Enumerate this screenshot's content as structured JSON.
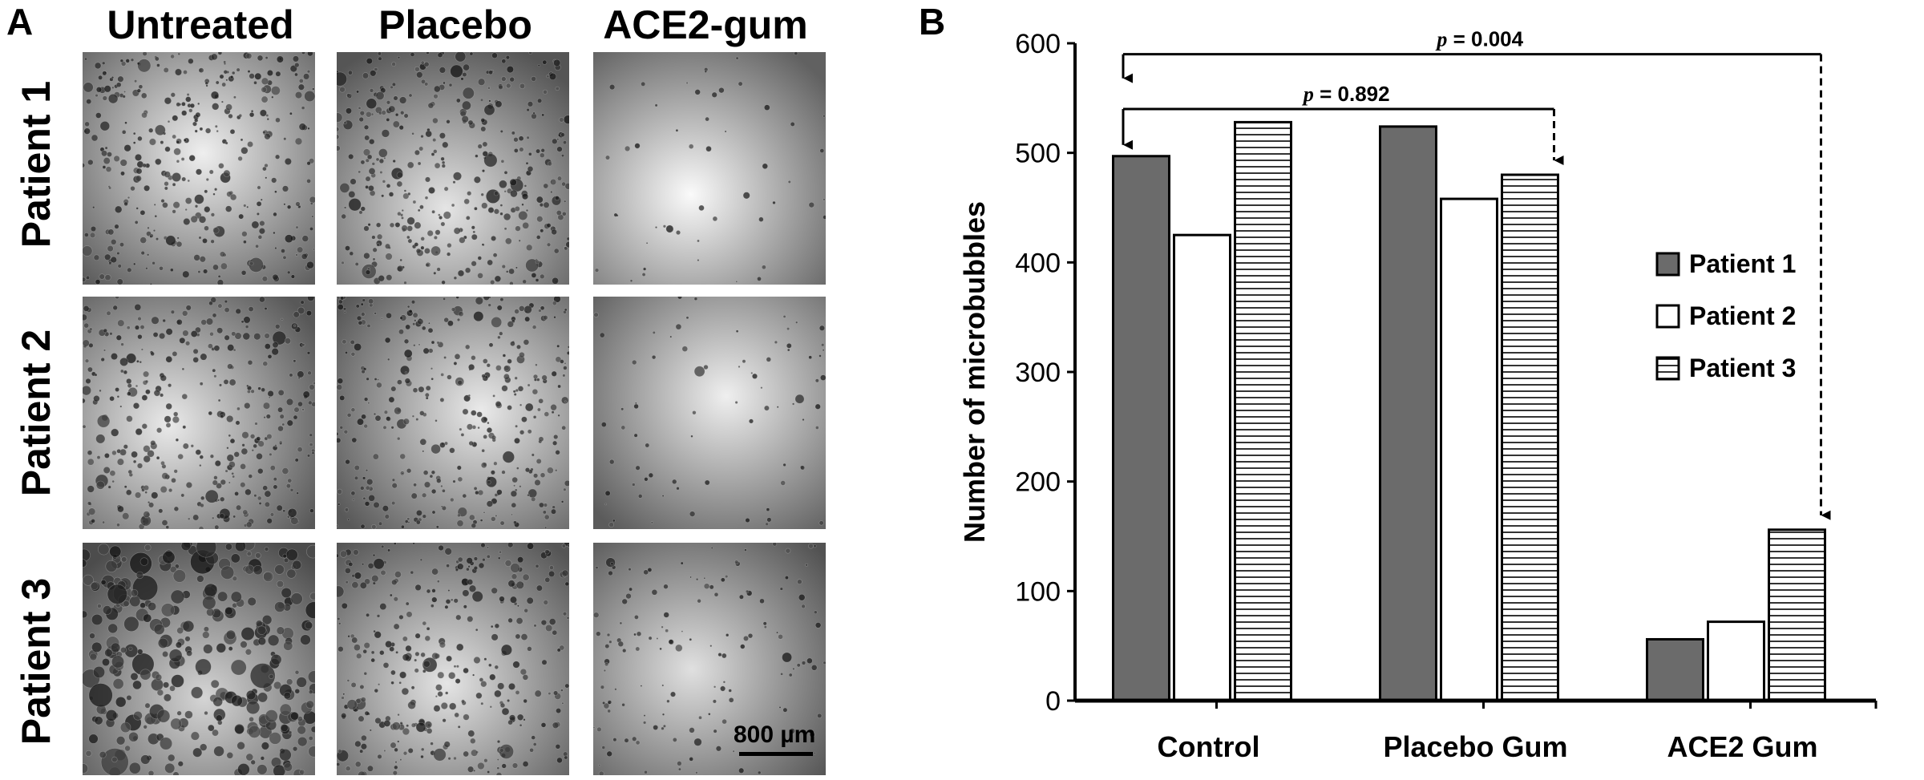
{
  "figure": {
    "panel_a_letter": "A",
    "panel_b_letter": "B",
    "columns": [
      "Untreated",
      "Placebo",
      "ACE2-gum"
    ],
    "rows": [
      "Patient 1",
      "Patient 2",
      "Patient 3"
    ],
    "scale_bar": "800 µm",
    "micrographs": [
      {
        "name": "untreated-patient-1",
        "density": 0.9,
        "bubble_size": 1.0,
        "brightness": 0.85
      },
      {
        "name": "placebo-patient-1",
        "density": 0.95,
        "bubble_size": 1.0,
        "brightness": 0.75
      },
      {
        "name": "ace2-patient-1",
        "density": 0.12,
        "bubble_size": 0.8,
        "brightness": 0.95
      },
      {
        "name": "untreated-patient-2",
        "density": 0.9,
        "bubble_size": 1.0,
        "brightness": 0.8
      },
      {
        "name": "placebo-patient-2",
        "density": 0.9,
        "bubble_size": 0.9,
        "brightness": 0.8
      },
      {
        "name": "ace2-patient-2",
        "density": 0.18,
        "bubble_size": 0.8,
        "brightness": 0.85
      },
      {
        "name": "untreated-patient-3",
        "density": 0.8,
        "bubble_size": 1.9,
        "brightness": 0.6
      },
      {
        "name": "placebo-patient-3",
        "density": 0.85,
        "bubble_size": 1.0,
        "brightness": 0.75
      },
      {
        "name": "ace2-patient-3",
        "density": 0.35,
        "bubble_size": 0.8,
        "brightness": 0.7
      }
    ]
  },
  "chart_data": {
    "type": "bar",
    "categories": [
      "Control",
      "Placebo Gum",
      "ACE2 Gum"
    ],
    "series": [
      {
        "name": "Patient 1",
        "values": [
          497,
          524,
          56
        ],
        "fill": "dark-gray"
      },
      {
        "name": "Patient 2",
        "values": [
          425,
          458,
          72
        ],
        "fill": "white"
      },
      {
        "name": "Patient 3",
        "values": [
          528,
          480,
          156
        ],
        "fill": "horizontal-stripes"
      }
    ],
    "title": "",
    "xlabel": "",
    "ylabel": "Number of microbubbles",
    "ylim": [
      0,
      600
    ],
    "yticks": [
      0,
      100,
      200,
      300,
      400,
      500,
      600
    ],
    "grid": false,
    "legend_position": "right",
    "annotations": [
      {
        "text_prefix": "p",
        "text_value": " = 0.892",
        "from": "Control",
        "to": "Placebo Gum",
        "level": 540,
        "style": "solid-to-dashed"
      },
      {
        "text_prefix": "p",
        "text_value": " = 0.004",
        "from": "Control",
        "to": "ACE2 Gum",
        "level": 590,
        "style": "solid-to-dashed"
      }
    ],
    "colors": {
      "dark": "#6b6b6b",
      "white": "#ffffff",
      "stripe": "#000000"
    }
  }
}
